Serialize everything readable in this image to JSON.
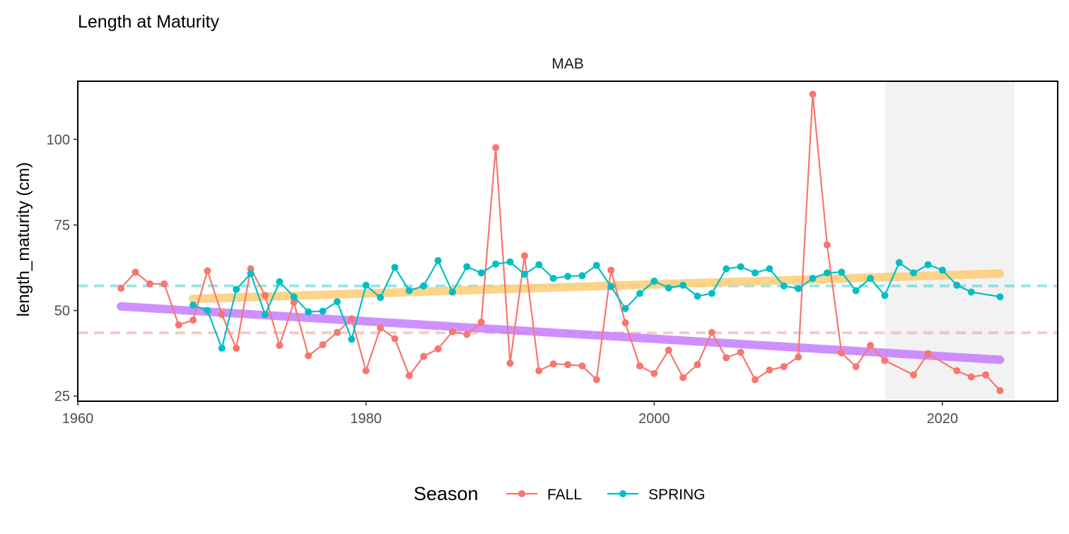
{
  "chart_data": {
    "type": "line",
    "title": "Length at Maturity",
    "panel_label": "MAB",
    "xlabel": "",
    "ylabel": "length_maturity (cm)",
    "xlim": [
      1960,
      2028
    ],
    "ylim": [
      23.5,
      117
    ],
    "x_ticks": [
      1960,
      1980,
      2000,
      2020
    ],
    "y_ticks": [
      25,
      50,
      75,
      100
    ],
    "highlight_x": [
      2016,
      2025
    ],
    "legend": {
      "title": "Season",
      "position": "bottom"
    },
    "series": [
      {
        "name": "FALL",
        "color": "#F8766D",
        "points": [
          [
            1963,
            56.5
          ],
          [
            1964,
            61.2
          ],
          [
            1965,
            57.8
          ],
          [
            1966,
            57.8
          ],
          [
            1967,
            45.8
          ],
          [
            1968,
            47.2
          ],
          [
            1969,
            61.6
          ],
          [
            1970,
            48.8
          ],
          [
            1971,
            39.0
          ],
          [
            1972,
            62.2
          ],
          [
            1973,
            54.4
          ],
          [
            1974,
            39.8
          ],
          [
            1975,
            52.4
          ],
          [
            1976,
            36.8
          ],
          [
            1977,
            40.0
          ],
          [
            1978,
            43.6
          ],
          [
            1979,
            47.6
          ],
          [
            1980,
            32.4
          ],
          [
            1981,
            44.9
          ],
          [
            1982,
            41.8
          ],
          [
            1983,
            31.0
          ],
          [
            1984,
            36.6
          ],
          [
            1985,
            38.8
          ],
          [
            1986,
            43.8
          ],
          [
            1987,
            43.0
          ],
          [
            1988,
            46.6
          ],
          [
            1989,
            97.6
          ],
          [
            1990,
            34.6
          ],
          [
            1991,
            66.0
          ],
          [
            1992,
            32.4
          ],
          [
            1993,
            34.4
          ],
          [
            1994,
            34.2
          ],
          [
            1995,
            33.8
          ],
          [
            1996,
            29.8
          ],
          [
            1997,
            61.8
          ],
          [
            1998,
            46.4
          ],
          [
            1999,
            33.8
          ],
          [
            2000,
            31.6
          ],
          [
            2001,
            38.4
          ],
          [
            2002,
            30.4
          ],
          [
            2003,
            34.2
          ],
          [
            2004,
            43.6
          ],
          [
            2005,
            36.2
          ],
          [
            2006,
            37.8
          ],
          [
            2007,
            29.8
          ],
          [
            2008,
            32.6
          ],
          [
            2009,
            33.6
          ],
          [
            2010,
            36.4
          ],
          [
            2011,
            113.2
          ],
          [
            2012,
            69.2
          ],
          [
            2013,
            37.6
          ],
          [
            2014,
            33.6
          ],
          [
            2015,
            39.8
          ],
          [
            2016,
            35.4
          ],
          [
            2018,
            31.2
          ],
          [
            2019,
            37.4
          ],
          [
            2021,
            32.4
          ],
          [
            2022,
            30.6
          ],
          [
            2023,
            31.2
          ],
          [
            2024,
            26.6
          ]
        ]
      },
      {
        "name": "SPRING",
        "color": "#00BFC4",
        "points": [
          [
            1968,
            51.6
          ],
          [
            1969,
            50.0
          ],
          [
            1970,
            39.0
          ],
          [
            1971,
            56.2
          ],
          [
            1972,
            60.8
          ],
          [
            1973,
            48.8
          ],
          [
            1974,
            58.4
          ],
          [
            1975,
            54.0
          ],
          [
            1976,
            49.6
          ],
          [
            1977,
            49.8
          ],
          [
            1978,
            52.6
          ],
          [
            1979,
            41.6
          ],
          [
            1980,
            57.4
          ],
          [
            1981,
            53.8
          ],
          [
            1982,
            62.6
          ],
          [
            1983,
            55.8
          ],
          [
            1984,
            57.2
          ],
          [
            1985,
            64.6
          ],
          [
            1986,
            55.4
          ],
          [
            1987,
            62.8
          ],
          [
            1988,
            61.0
          ],
          [
            1989,
            63.6
          ],
          [
            1990,
            64.2
          ],
          [
            1991,
            60.6
          ],
          [
            1992,
            63.4
          ],
          [
            1993,
            59.4
          ],
          [
            1994,
            60.0
          ],
          [
            1995,
            60.2
          ],
          [
            1996,
            63.2
          ],
          [
            1997,
            57.0
          ],
          [
            1998,
            50.6
          ],
          [
            1999,
            55.0
          ],
          [
            2000,
            58.6
          ],
          [
            2001,
            56.6
          ],
          [
            2002,
            57.4
          ],
          [
            2003,
            54.2
          ],
          [
            2004,
            55.0
          ],
          [
            2005,
            62.2
          ],
          [
            2006,
            62.8
          ],
          [
            2007,
            61.0
          ],
          [
            2008,
            62.2
          ],
          [
            2009,
            57.2
          ],
          [
            2010,
            56.4
          ],
          [
            2011,
            59.4
          ],
          [
            2012,
            61.0
          ],
          [
            2013,
            61.2
          ],
          [
            2014,
            55.8
          ],
          [
            2015,
            59.4
          ],
          [
            2016,
            54.4
          ],
          [
            2017,
            64.0
          ],
          [
            2018,
            61.0
          ],
          [
            2019,
            63.4
          ],
          [
            2020,
            61.8
          ],
          [
            2021,
            57.4
          ],
          [
            2022,
            55.4
          ],
          [
            2024,
            54.0
          ]
        ]
      }
    ],
    "reference_lines": [
      {
        "series": "FALL",
        "y": 43.5,
        "style": "dashed",
        "color": "#F8766D"
      },
      {
        "series": "SPRING",
        "y": 57.2,
        "style": "dashed",
        "color": "#00BFC4"
      }
    ],
    "trend_lines": [
      {
        "series": "FALL",
        "color": "#C77CFF",
        "from": [
          1963,
          51.2
        ],
        "to": [
          2024,
          35.6
        ]
      },
      {
        "series": "SPRING",
        "color": "#FDCD75",
        "from": [
          1968,
          53.4
        ],
        "to": [
          2024,
          60.8
        ]
      }
    ]
  }
}
